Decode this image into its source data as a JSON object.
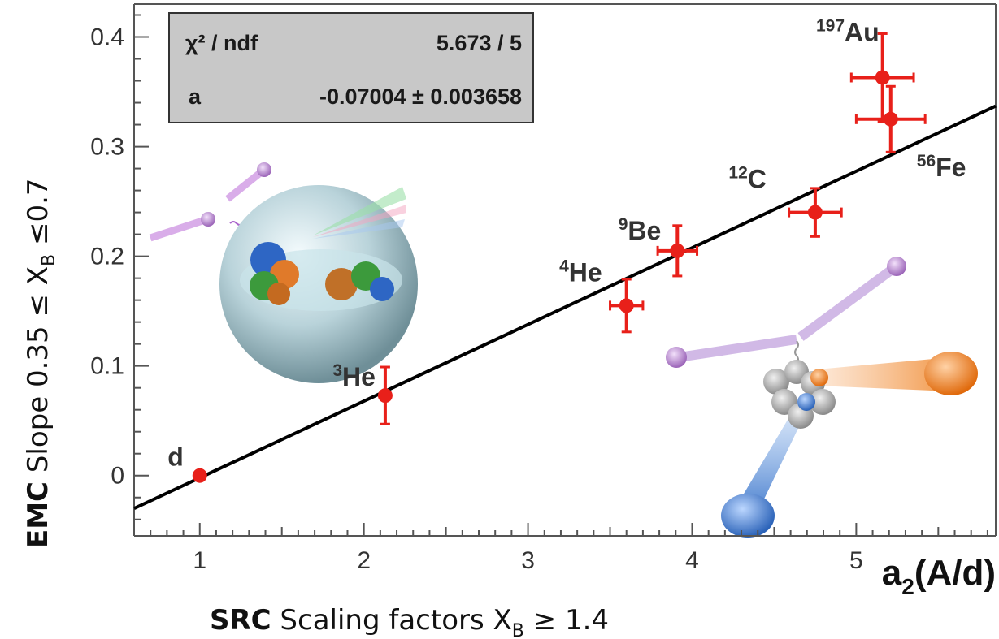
{
  "chart_data": {
    "type": "scatter",
    "x_axis_label": "a",
    "x_axis_label_sub": "2",
    "x_axis_label_rest": "(A/d)",
    "x_caption_bold": "SRC",
    "x_caption_text": " Scaling factors X",
    "x_caption_sub": "B",
    "x_caption_tail": " ≥ 1.4",
    "y_caption_bold": "EMC",
    "y_caption_text": " Slope    0.35 ≤ X",
    "y_caption_sub": "B",
    "y_caption_tail": " ≤0.7",
    "xlim": [
      0.6,
      5.85
    ],
    "ylim": [
      -0.055,
      0.43
    ],
    "x_ticks": [
      1,
      2,
      3,
      4,
      5
    ],
    "x_tick_labels": [
      "1",
      "2",
      "3",
      "4",
      "5"
    ],
    "y_ticks": [
      0,
      0.1,
      0.2,
      0.3,
      0.4
    ],
    "y_tick_labels": [
      "0",
      "0.1",
      "0.2",
      "0.3",
      "0.4"
    ],
    "points": [
      {
        "label": "d",
        "mass": "",
        "x": 1.0,
        "y": 0.0,
        "xerr": 0,
        "yerr": 0
      },
      {
        "label": "He",
        "mass": "3",
        "x": 2.13,
        "y": 0.073,
        "xerr": 0,
        "yerr": 0.026
      },
      {
        "label": "He",
        "mass": "4",
        "x": 3.6,
        "y": 0.155,
        "xerr": 0.1,
        "yerr": 0.024
      },
      {
        "label": "Be",
        "mass": "9",
        "x": 3.91,
        "y": 0.205,
        "xerr": 0.12,
        "yerr": 0.023
      },
      {
        "label": "C",
        "mass": "12",
        "x": 4.75,
        "y": 0.24,
        "xerr": 0.16,
        "yerr": 0.022
      },
      {
        "label": "Fe",
        "mass": "56",
        "x": 5.21,
        "y": 0.325,
        "xerr": 0.21,
        "yerr": 0.03
      },
      {
        "label": "Au",
        "mass": "197",
        "x": 5.16,
        "y": 0.363,
        "xerr": 0.19,
        "yerr": 0.04
      }
    ],
    "fit_line": {
      "x": [
        0.6,
        5.85
      ],
      "y": [
        -0.03,
        0.337
      ],
      "color": "#000000"
    },
    "fit_stats": {
      "chi2_label": "χ² / ndf",
      "chi2_value": "5.673 / 5",
      "param_label": "a",
      "param_value": "-0.07004 ± 0.003658"
    },
    "colors": {
      "points": "#e8201a",
      "axis": "#555555",
      "stats_box": "#c8c8c8"
    },
    "grid": false
  }
}
